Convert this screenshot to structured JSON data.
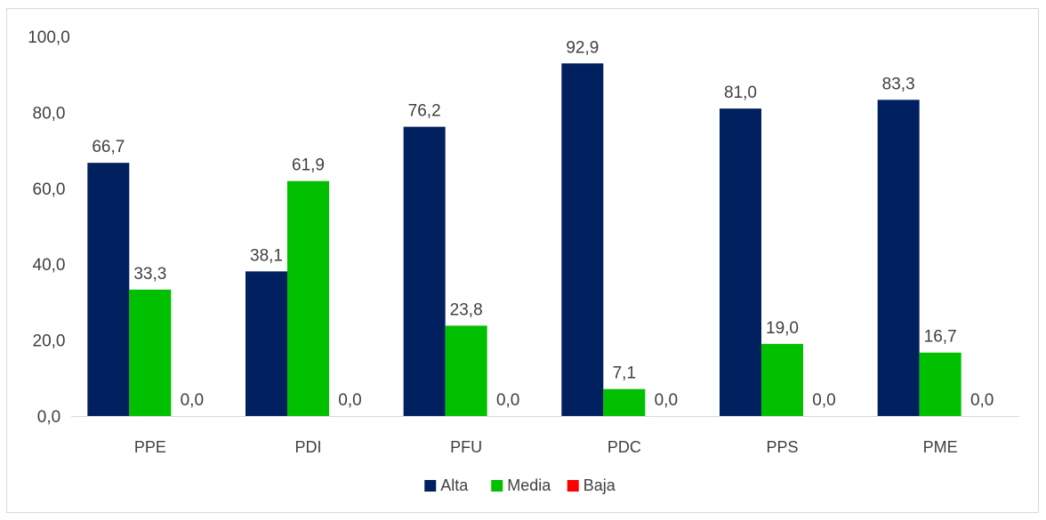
{
  "chart_data": {
    "type": "bar",
    "title": "",
    "xlabel": "",
    "ylabel": "",
    "categories": [
      "PPE",
      "PDI",
      "PFU",
      "PDC",
      "PPS",
      "PME"
    ],
    "series": [
      {
        "name": "Alta",
        "color": "#002060",
        "values": [
          66.7,
          38.1,
          76.2,
          92.9,
          81.0,
          83.3
        ],
        "labels": [
          "66,7",
          "38,1",
          "76,2",
          "92,9",
          "81,0",
          "83,3"
        ]
      },
      {
        "name": "Media",
        "color": "#00c000",
        "values": [
          33.3,
          61.9,
          23.8,
          7.1,
          19.0,
          16.7
        ],
        "labels": [
          "33,3",
          "61,9",
          "23,8",
          "7,1",
          "19,0",
          "16,7"
        ]
      },
      {
        "name": "Baja",
        "color": "#ff0000",
        "values": [
          0.0,
          0.0,
          0.0,
          0.0,
          0.0,
          0.0
        ],
        "labels": [
          "0,0",
          "0,0",
          "0,0",
          "0,0",
          "0,0",
          "0,0"
        ]
      }
    ],
    "ylim": [
      0,
      100
    ],
    "yticks": [
      0,
      20,
      40,
      60,
      80,
      100
    ],
    "ytick_labels": [
      "0,0",
      "20,0",
      "40,0",
      "60,0",
      "80,0",
      "100,0"
    ],
    "grid": false,
    "legend_position": "bottom"
  }
}
